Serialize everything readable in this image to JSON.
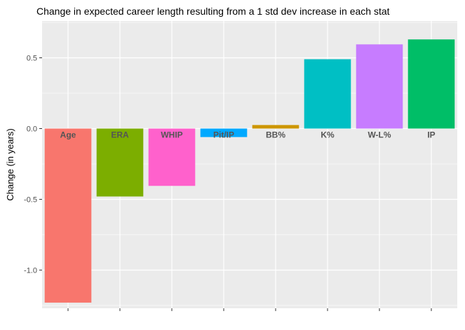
{
  "chart_data": {
    "type": "bar",
    "title": "Change in expected career length resulting from a 1 std dev increase in each stat",
    "xlabel": "",
    "ylabel": "Change (in years)",
    "categories": [
      "Age",
      "ERA",
      "WHIP",
      "Pit/IP",
      "BB%",
      "K%",
      "W-L%",
      "IP"
    ],
    "values": [
      -1.23,
      -0.48,
      -0.405,
      -0.06,
      0.025,
      0.49,
      0.595,
      0.63
    ],
    "colors": [
      "#F8766D",
      "#7CAE00",
      "#FF61CC",
      "#00A9FF",
      "#CD9600",
      "#00BFC4",
      "#C77CFF",
      "#00BE67"
    ],
    "ylim": [
      -1.27,
      0.76
    ],
    "yticks": [
      -1.0,
      -0.5,
      0.0,
      0.5
    ],
    "ytick_labels": [
      "-1.0",
      "-0.5",
      "0.0",
      "0.5"
    ],
    "grid": true,
    "legend": "none",
    "panel_background": "#EBEBEB",
    "grid_color": "#FFFFFF"
  }
}
